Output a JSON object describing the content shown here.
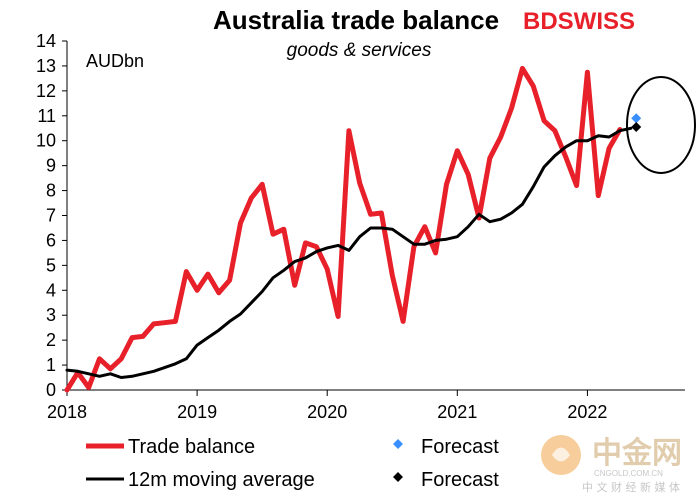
{
  "brand": {
    "text": "BDSWISS",
    "part1": "BD",
    "part2": "SWISS",
    "color": "#e8202a"
  },
  "watermark": {
    "logo": "中金网",
    "site": "CNGOLD.COM.CN",
    "tagline": "中 文 财 经 新 媒 体"
  },
  "chart_data": {
    "type": "line",
    "title": "Australia  trade balance",
    "subtitle": "goods & services",
    "ylabel": "AUDbn",
    "xlabel": "",
    "ylim": [
      0,
      14
    ],
    "xlim": [
      2018.0,
      2022.75
    ],
    "yticks": [
      0,
      1,
      2,
      3,
      4,
      5,
      6,
      7,
      8,
      9,
      10,
      11,
      12,
      13,
      14
    ],
    "xticks": [
      2018,
      2019,
      2020,
      2021,
      2022
    ],
    "grid": false,
    "series": [
      {
        "name": "Trade balance",
        "color": "#e8202a",
        "values": [
          0.0,
          0.7,
          0.1,
          1.25,
          0.85,
          1.25,
          2.1,
          2.15,
          2.65,
          2.7,
          2.75,
          4.75,
          4.0,
          4.65,
          3.9,
          4.4,
          6.7,
          7.7,
          8.25,
          6.25,
          6.45,
          4.2,
          5.9,
          5.75,
          4.85,
          2.95,
          10.4,
          8.3,
          7.05,
          7.1,
          4.6,
          2.75,
          5.75,
          6.55,
          5.5,
          8.25,
          9.6,
          8.65,
          6.9,
          9.3,
          10.15,
          11.3,
          12.9,
          12.2,
          10.8,
          10.4,
          9.35,
          8.2,
          12.75,
          7.8,
          9.7,
          10.45
        ],
        "x_start": 2018.0,
        "x_step_months": 1
      },
      {
        "name": "12m moving average",
        "color": "#000000",
        "values": [
          0.8,
          0.75,
          0.65,
          0.55,
          0.65,
          0.5,
          0.55,
          0.65,
          0.75,
          0.9,
          1.05,
          1.25,
          1.8,
          2.1,
          2.4,
          2.75,
          3.05,
          3.5,
          3.95,
          4.5,
          4.8,
          5.15,
          5.3,
          5.55,
          5.7,
          5.8,
          5.6,
          6.15,
          6.5,
          6.5,
          6.45,
          6.15,
          5.85,
          5.85,
          6.0,
          6.05,
          6.15,
          6.55,
          7.05,
          6.75,
          6.85,
          7.1,
          7.45,
          8.15,
          8.95,
          9.4,
          9.75,
          10.0,
          10.0,
          10.2,
          10.15,
          10.4,
          10.5
        ],
        "x_start": 2018.0,
        "x_step_months": 1
      }
    ],
    "forecasts": [
      {
        "name": "Forecast",
        "series": "Trade balance",
        "color": "#3a8fff",
        "x": 2022.375,
        "y": 10.9
      },
      {
        "name": "Forecast",
        "series": "12m moving average",
        "color": "#000000",
        "x": 2022.375,
        "y": 10.55
      }
    ],
    "annotation": "circle around forecast points",
    "legend": {
      "position": "bottom",
      "entries": [
        {
          "label": "Trade balance",
          "marker": "line",
          "color": "#e8202a"
        },
        {
          "label": "Forecast",
          "marker": "diamond",
          "color": "#3a8fff"
        },
        {
          "label": "12m moving average",
          "marker": "line",
          "color": "#000000"
        },
        {
          "label": "Forecast",
          "marker": "diamond",
          "color": "#000000"
        }
      ]
    }
  }
}
